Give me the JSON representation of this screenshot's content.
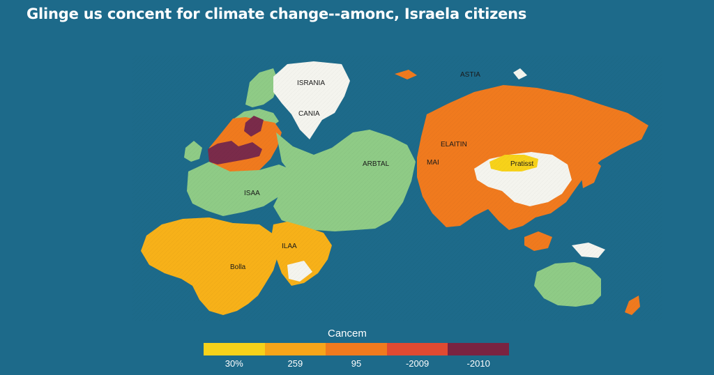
{
  "title": "Glinge us concent for climate change--amonc, Israela citizens",
  "map": {
    "labels": {
      "israna": "ISRANIA",
      "cania": "CANIA",
      "asia": "ASTIA",
      "arbtal": "ARBTAL",
      "isaa": "ISAA",
      "ilaa": "ILAA",
      "bolla": "Bolla",
      "elaitin": "ELAITIN",
      "mai": "MAI",
      "pratisst": "Pratisst"
    },
    "colors": {
      "ocean": "#1d6a8a",
      "green": "#8fcb86",
      "yellow": "#f7b119",
      "orange": "#f07a1e",
      "red": "#c8473a",
      "purple": "#7a2b4a",
      "white": "#f4f4ee",
      "bright_yellow": "#f7d21a"
    }
  },
  "legend": {
    "title": "Cancem",
    "items": [
      {
        "label": "30%",
        "color": "#f7d21a"
      },
      {
        "label": "259",
        "color": "#f7a51a"
      },
      {
        "label": "95",
        "color": "#f07a1e"
      },
      {
        "label": "-2009",
        "color": "#e04a32"
      },
      {
        "label": "-2010",
        "color": "#7a2341"
      }
    ]
  }
}
